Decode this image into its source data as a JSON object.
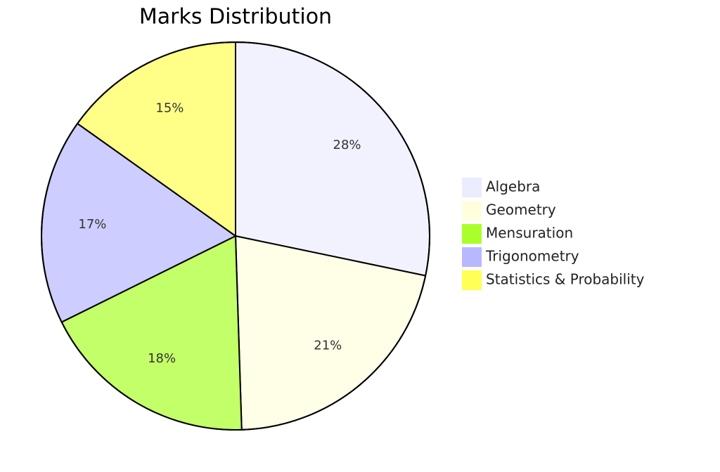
{
  "chart_data": {
    "type": "pie",
    "title": "Marks Distribution",
    "categories": [
      "Algebra",
      "Geometry",
      "Mensuration",
      "Trigonometry",
      "Statistics & Probability"
    ],
    "values": [
      28,
      21,
      18,
      17,
      15
    ],
    "value_labels": [
      "28%",
      "21%",
      "18%",
      "17%",
      "15%"
    ],
    "colors": [
      "#ececff",
      "#ffffde",
      "#aaff2a",
      "#b8b8ff",
      "#ffff55"
    ],
    "legend": "right"
  }
}
